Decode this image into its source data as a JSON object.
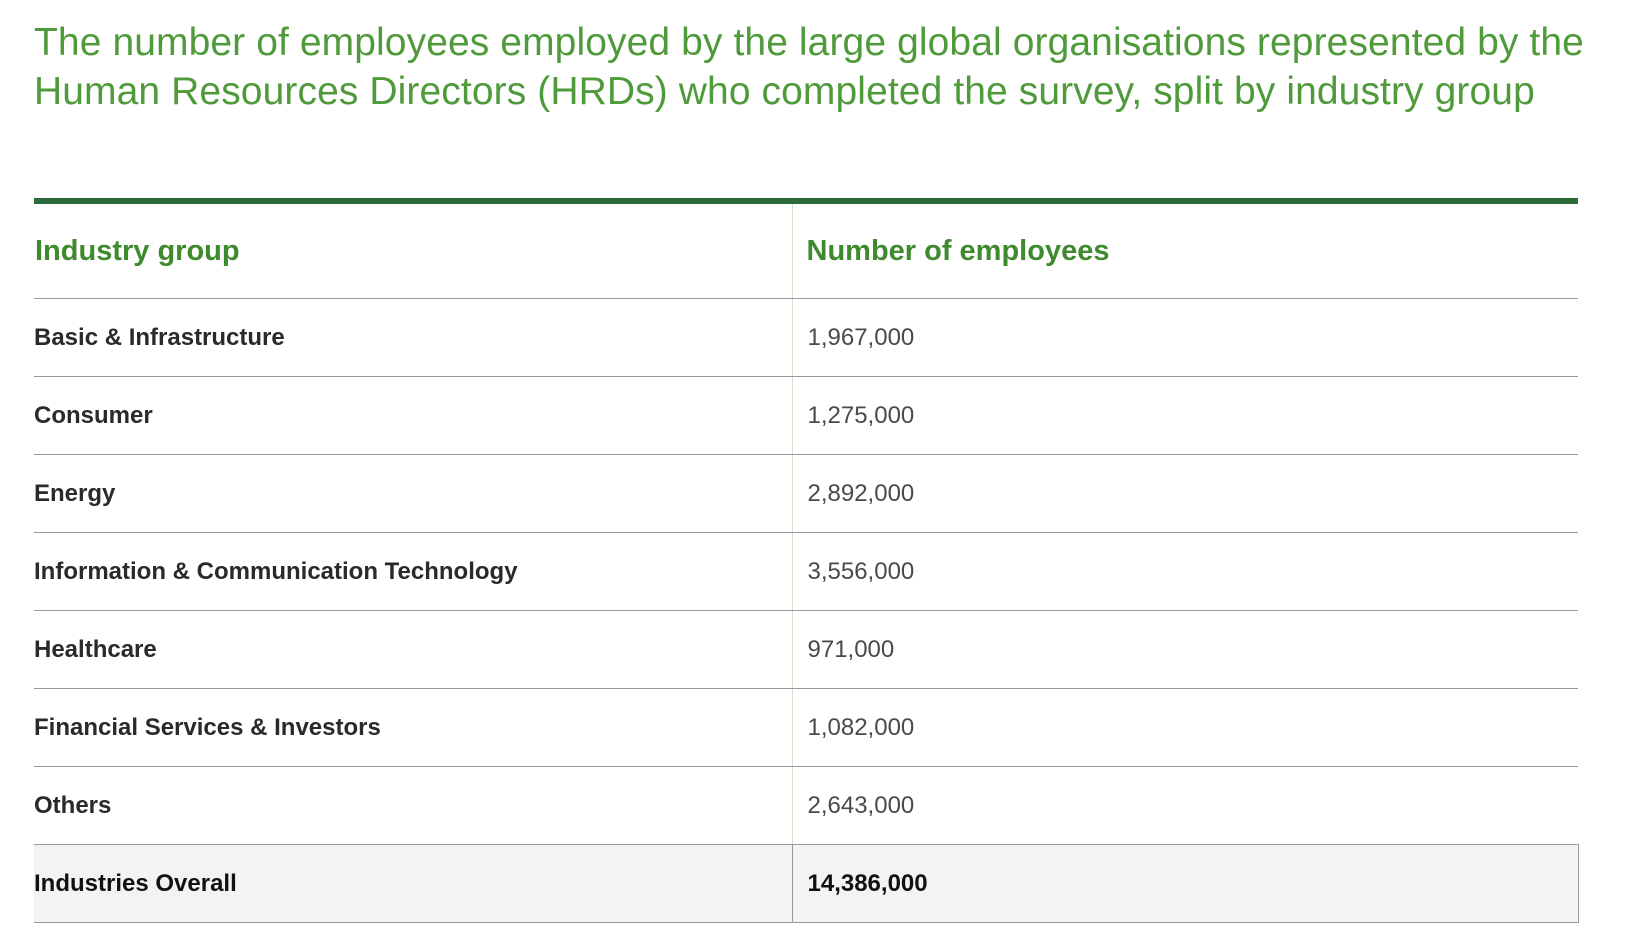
{
  "title": "The number of employees employed by the large global organisations represented by the Human Resources Directors (HRDs) who completed the survey, split by industry group",
  "table": {
    "headers": {
      "industry": "Industry group",
      "employees": "Number of employees"
    },
    "rows": [
      {
        "industry": "Basic & Infrastructure",
        "employees": "1,967,000"
      },
      {
        "industry": "Consumer",
        "employees": "1,275,000"
      },
      {
        "industry": "Energy",
        "employees": "2,892,000"
      },
      {
        "industry": "Information & Communication Technology",
        "employees": "3,556,000"
      },
      {
        "industry": "Healthcare",
        "employees": "971,000"
      },
      {
        "industry": "Financial Services & Investors",
        "employees": "1,082,000"
      },
      {
        "industry": "Others",
        "employees": "2,643,000"
      }
    ],
    "total": {
      "industry": "Industries Overall",
      "employees": "14,386,000"
    }
  },
  "colors": {
    "title": "#4f9a3a",
    "header_text": "#3f8a2e",
    "top_rule": "#2d6b3a",
    "total_row_bg": "#f3f4f2"
  }
}
